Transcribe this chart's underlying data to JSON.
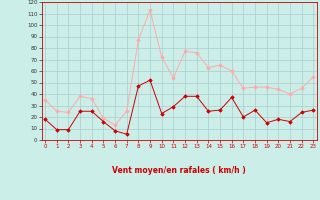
{
  "x": [
    0,
    1,
    2,
    3,
    4,
    5,
    6,
    7,
    8,
    9,
    10,
    11,
    12,
    13,
    14,
    15,
    16,
    17,
    18,
    19,
    20,
    21,
    22,
    23
  ],
  "vent_moyen": [
    18,
    9,
    9,
    25,
    25,
    16,
    8,
    5,
    47,
    52,
    23,
    29,
    38,
    38,
    25,
    26,
    37,
    20,
    26,
    15,
    18,
    16,
    24,
    26
  ],
  "vent_rafales": [
    35,
    25,
    24,
    38,
    36,
    19,
    13,
    25,
    87,
    113,
    72,
    54,
    77,
    76,
    63,
    65,
    60,
    45,
    46,
    46,
    44,
    40,
    45,
    55
  ],
  "color_moyen": "#cc0000",
  "color_rafales": "#ffaaaa",
  "bg_color": "#cceee8",
  "grid_color": "#aacccc",
  "xlabel": "Vent moyen/en rafales ( km/h )",
  "xlabel_color": "#cc0000",
  "ylim": [
    0,
    120
  ],
  "yticks": [
    0,
    10,
    20,
    30,
    40,
    50,
    60,
    70,
    80,
    90,
    100,
    110,
    120
  ],
  "xticks": [
    0,
    1,
    2,
    3,
    4,
    5,
    6,
    7,
    8,
    9,
    10,
    11,
    12,
    13,
    14,
    15,
    16,
    17,
    18,
    19,
    20,
    21,
    22,
    23
  ],
  "arrow_chars": [
    "↗",
    "↑",
    "↗",
    "↑",
    "↗",
    "↖",
    "↖",
    "↘",
    "↗",
    "→",
    "→",
    "↗",
    "→",
    "→",
    "→",
    "↘",
    "↗",
    "↗",
    "→",
    "↗",
    "→",
    "↗",
    "↗",
    "↗"
  ]
}
